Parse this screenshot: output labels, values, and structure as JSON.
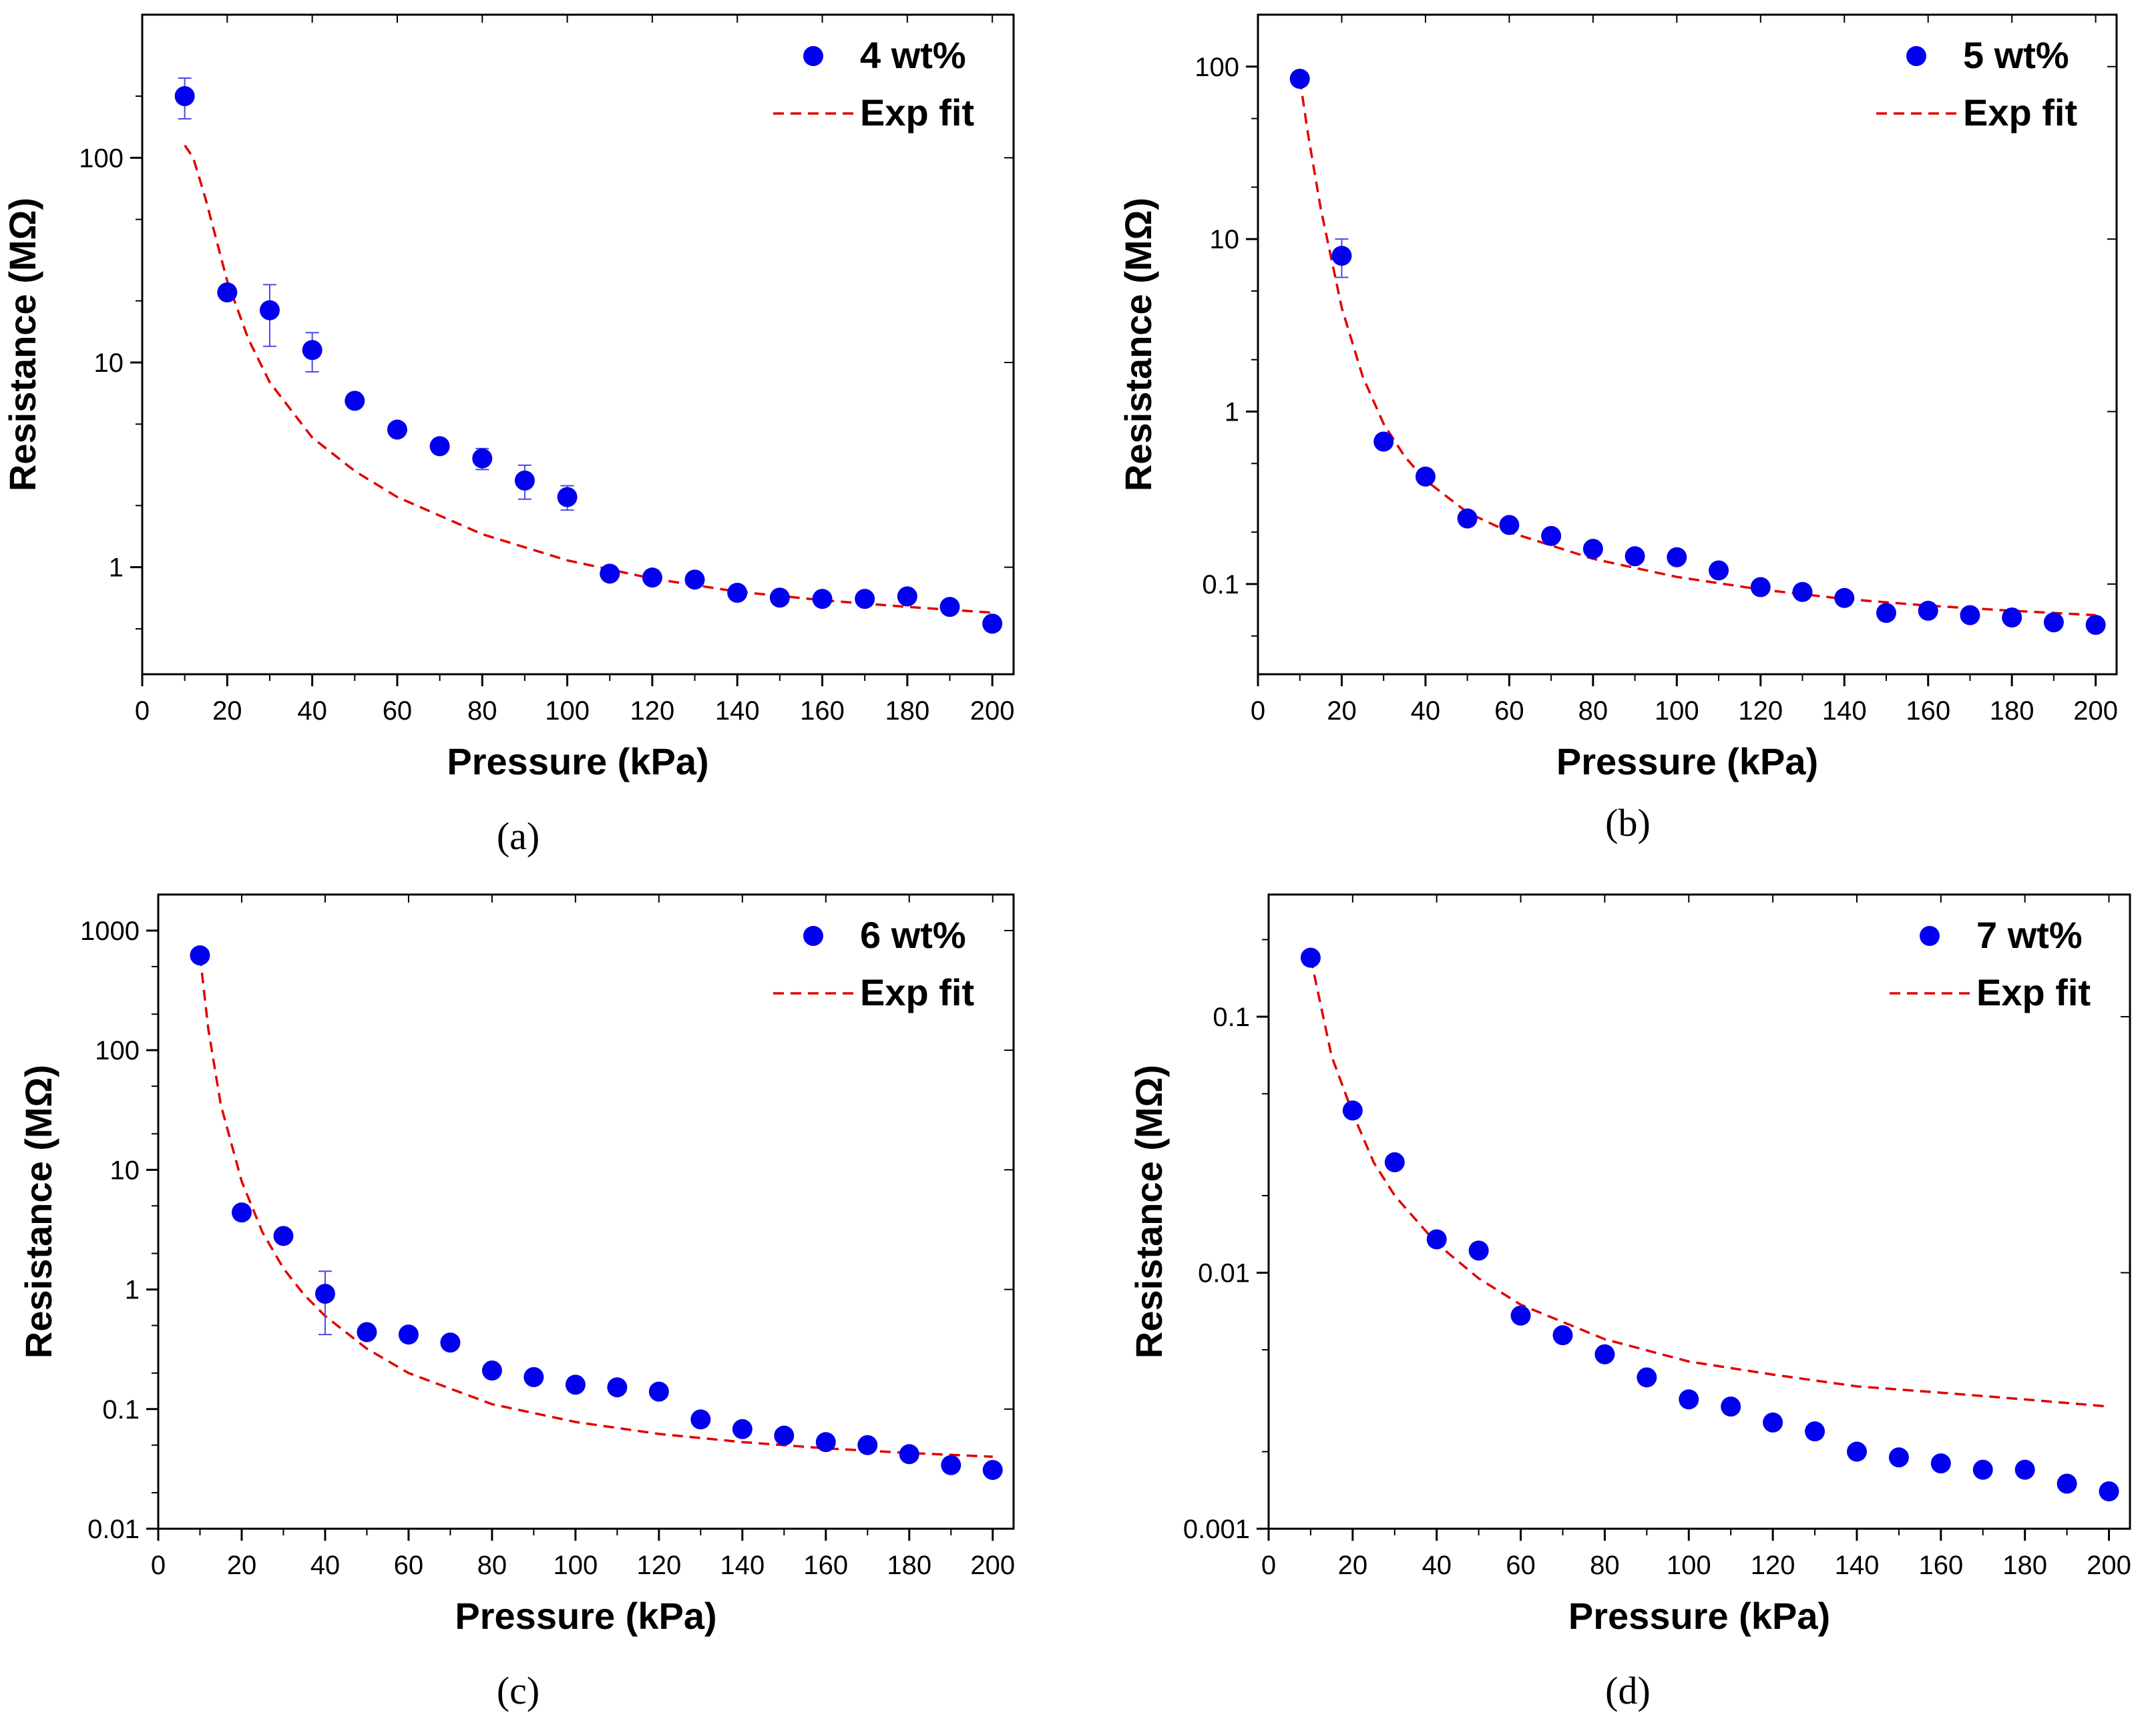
{
  "colors": {
    "points": "#0000ee",
    "fit": "#e00000",
    "errorbar": "#4a4ae0",
    "axis": "#000000"
  },
  "chart_data": [
    {
      "type": "scatter",
      "caption": "(a)",
      "xlabel": "Pressure (kPa)",
      "ylabel": "Resistance (MΩ)",
      "xlim": [
        0,
        205
      ],
      "ylim": [
        0.3,
        500
      ],
      "yscale": "log",
      "xticks": [
        0,
        20,
        40,
        60,
        80,
        100,
        120,
        140,
        160,
        180,
        200
      ],
      "xtick_labels": [
        "0",
        "20",
        "40",
        "60",
        "80",
        "100",
        "120",
        "140",
        "160",
        "180",
        "200"
      ],
      "yticks": [
        1,
        10,
        100
      ],
      "ytick_labels": [
        "1",
        "10",
        "100"
      ],
      "legend_position": "top-right",
      "series": [
        {
          "name": "4 wt%",
          "kind": "points",
          "x": [
            10,
            20,
            30,
            40,
            50,
            60,
            70,
            80,
            90,
            100,
            110,
            120,
            130,
            140,
            150,
            160,
            170,
            180,
            190,
            200
          ],
          "y": [
            200,
            22,
            18,
            11.5,
            6.5,
            4.7,
            3.9,
            3.4,
            2.65,
            2.2,
            0.93,
            0.89,
            0.87,
            0.75,
            0.71,
            0.7,
            0.7,
            0.72,
            0.64,
            0.53
          ],
          "err": [
            45,
            1.5,
            6,
            2.5,
            0.4,
            0.3,
            0.4,
            0.4,
            0.5,
            0.3,
            0.05,
            0.05,
            0.05,
            0.05,
            0.04,
            0.04,
            0.04,
            0.04,
            0.04,
            0.04
          ]
        },
        {
          "name": "Exp fit",
          "kind": "fit",
          "x": [
            10,
            12,
            15,
            20,
            25,
            30,
            40,
            50,
            60,
            80,
            100,
            120,
            140,
            160,
            180,
            200
          ],
          "y": [
            115,
            100,
            62,
            25,
            13,
            8,
            4.3,
            2.95,
            2.2,
            1.45,
            1.08,
            0.88,
            0.76,
            0.69,
            0.64,
            0.6
          ]
        }
      ]
    },
    {
      "type": "scatter",
      "caption": "(b)",
      "xlabel": "Pressure (kPa)",
      "ylabel": "Resistance (MΩ)",
      "xlim": [
        0,
        205
      ],
      "ylim": [
        0.03,
        200
      ],
      "yscale": "log",
      "xticks": [
        0,
        20,
        40,
        60,
        80,
        100,
        120,
        140,
        160,
        180,
        200
      ],
      "xtick_labels": [
        "0",
        "20",
        "40",
        "60",
        "80",
        "100",
        "120",
        "140",
        "160",
        "180",
        "200"
      ],
      "yticks": [
        0.1,
        1,
        10,
        100
      ],
      "ytick_labels": [
        "0.1",
        "1",
        "10",
        "100"
      ],
      "legend_position": "top-right",
      "series": [
        {
          "name": "5 wt%",
          "kind": "points",
          "x": [
            10,
            20,
            30,
            40,
            50,
            60,
            70,
            80,
            90,
            100,
            110,
            120,
            130,
            140,
            150,
            160,
            170,
            180,
            190,
            200
          ],
          "y": [
            85,
            8,
            0.67,
            0.42,
            0.24,
            0.22,
            0.19,
            0.16,
            0.145,
            0.143,
            0.12,
            0.096,
            0.09,
            0.083,
            0.068,
            0.07,
            0.066,
            0.064,
            0.06,
            0.058
          ],
          "err": [
            5,
            2,
            0.03,
            0.02,
            0.01,
            0.01,
            0.01,
            0.01,
            0.005,
            0.005,
            0.005,
            0.004,
            0.004,
            0.004,
            0.003,
            0.003,
            0.003,
            0.003,
            0.003,
            0.003
          ]
        },
        {
          "name": "Exp fit",
          "kind": "fit",
          "x": [
            10,
            12,
            15,
            20,
            25,
            30,
            35,
            40,
            50,
            60,
            80,
            100,
            120,
            140,
            160,
            180,
            200
          ],
          "y": [
            85,
            40,
            15,
            4,
            1.6,
            0.85,
            0.55,
            0.4,
            0.26,
            0.2,
            0.14,
            0.11,
            0.093,
            0.082,
            0.075,
            0.07,
            0.066
          ]
        }
      ]
    },
    {
      "type": "scatter",
      "caption": "(c)",
      "xlabel": "Pressure (kPa)",
      "ylabel": "Resistance (MΩ)",
      "xlim": [
        0,
        205
      ],
      "ylim": [
        0.01,
        2000
      ],
      "yscale": "log",
      "xticks": [
        0,
        20,
        40,
        60,
        80,
        100,
        120,
        140,
        160,
        180,
        200
      ],
      "xtick_labels": [
        "0",
        "20",
        "40",
        "60",
        "80",
        "100",
        "120",
        "140",
        "160",
        "180",
        "200"
      ],
      "yticks": [
        0.01,
        0.1,
        1,
        10,
        100,
        1000
      ],
      "ytick_labels": [
        "0.01",
        "0.1",
        "1",
        "10",
        "100",
        "1000"
      ],
      "legend_position": "top-right",
      "series": [
        {
          "name": "6 wt%",
          "kind": "points",
          "x": [
            10,
            20,
            30,
            40,
            50,
            60,
            70,
            80,
            90,
            100,
            110,
            120,
            130,
            140,
            150,
            160,
            170,
            180,
            190,
            200
          ],
          "y": [
            620,
            4.4,
            2.8,
            0.92,
            0.44,
            0.42,
            0.36,
            0.21,
            0.185,
            0.16,
            0.152,
            0.14,
            0.082,
            0.068,
            0.06,
            0.053,
            0.05,
            0.042,
            0.034,
            0.031
          ],
          "err": [
            40,
            0.2,
            0.2,
            0.5,
            0.02,
            0.02,
            0.02,
            0.01,
            0.01,
            0.01,
            0.01,
            0.01,
            0.004,
            0.003,
            0.003,
            0.003,
            0.003,
            0.002,
            0.002,
            0.002
          ]
        },
        {
          "name": "Exp fit",
          "kind": "fit",
          "x": [
            10,
            12,
            15,
            20,
            25,
            30,
            35,
            40,
            50,
            60,
            80,
            100,
            120,
            140,
            160,
            180,
            200
          ],
          "y": [
            620,
            150,
            35,
            8,
            3,
            1.5,
            0.9,
            0.6,
            0.32,
            0.2,
            0.11,
            0.078,
            0.062,
            0.053,
            0.047,
            0.043,
            0.04
          ]
        }
      ]
    },
    {
      "type": "scatter",
      "caption": "(d)",
      "xlabel": "Pressure (kPa)",
      "ylabel": "Resistance (MΩ)",
      "xlim": [
        0,
        205
      ],
      "ylim": [
        0.001,
        0.3
      ],
      "yscale": "log",
      "xticks": [
        0,
        20,
        40,
        60,
        80,
        100,
        120,
        140,
        160,
        180,
        200
      ],
      "xtick_labels": [
        "0",
        "20",
        "40",
        "60",
        "80",
        "100",
        "120",
        "140",
        "160",
        "180",
        "200"
      ],
      "yticks": [
        0.001,
        0.01,
        0.1
      ],
      "ytick_labels": [
        "0.001",
        "0.01",
        "0.1"
      ],
      "legend_position": "top-right",
      "series": [
        {
          "name": "7 wt%",
          "kind": "points",
          "x": [
            10,
            20,
            30,
            40,
            50,
            60,
            70,
            80,
            90,
            100,
            110,
            120,
            130,
            140,
            150,
            160,
            170,
            180,
            190,
            200
          ],
          "y": [
            0.17,
            0.043,
            0.027,
            0.0135,
            0.0122,
            0.0068,
            0.0057,
            0.0048,
            0.0039,
            0.0032,
            0.003,
            0.0026,
            0.0024,
            0.002,
            0.0019,
            0.0018,
            0.0017,
            0.0017,
            0.0015,
            0.0014
          ],
          "err": [
            0.005,
            0.002,
            0.001,
            0.0006,
            0.0005,
            0.0003,
            0.0002,
            0.0002,
            0.0001,
            0.0001,
            0.0001,
            0.0001,
            0.0001,
            0.0001,
            0.0001,
            0.0001,
            0.0001,
            0.0001,
            0.0001,
            0.0001
          ]
        },
        {
          "name": "Exp fit",
          "kind": "fit",
          "x": [
            10,
            15,
            20,
            25,
            30,
            40,
            50,
            60,
            80,
            100,
            120,
            140,
            160,
            180,
            200
          ],
          "y": [
            0.17,
            0.07,
            0.042,
            0.027,
            0.02,
            0.013,
            0.0095,
            0.0075,
            0.0055,
            0.0045,
            0.004,
            0.0036,
            0.0034,
            0.0032,
            0.003
          ]
        }
      ]
    }
  ]
}
